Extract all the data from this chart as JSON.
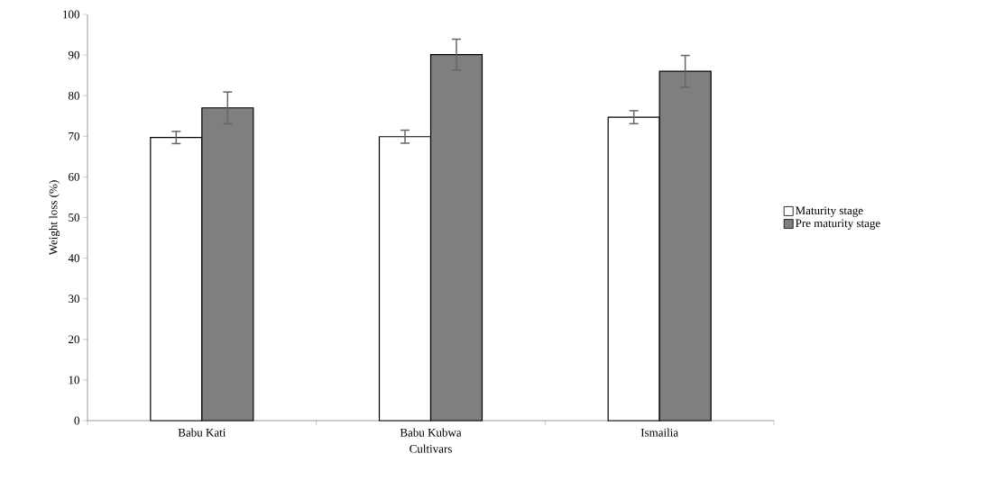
{
  "chart_data": {
    "type": "bar",
    "xlabel": "Cultivars",
    "ylabel": "Weight loss (%)",
    "categories": [
      "Babu Kati",
      "Babu Kubwa",
      "Ismailia"
    ],
    "series": [
      {
        "name": "Maturity stage",
        "color": "#ffffff",
        "values": [
          69.7,
          69.9,
          74.7
        ],
        "errors": [
          1.5,
          1.6,
          1.6
        ]
      },
      {
        "name": "Pre maturity stage",
        "color": "#7f7f7f",
        "values": [
          77.0,
          90.1,
          86.0
        ],
        "errors": [
          3.9,
          3.8,
          3.9
        ]
      }
    ],
    "ylim": [
      0,
      100
    ],
    "yticks": [
      0,
      10,
      20,
      30,
      40,
      50,
      60,
      70,
      80,
      90,
      100
    ],
    "grid": false,
    "legend": "right"
  }
}
